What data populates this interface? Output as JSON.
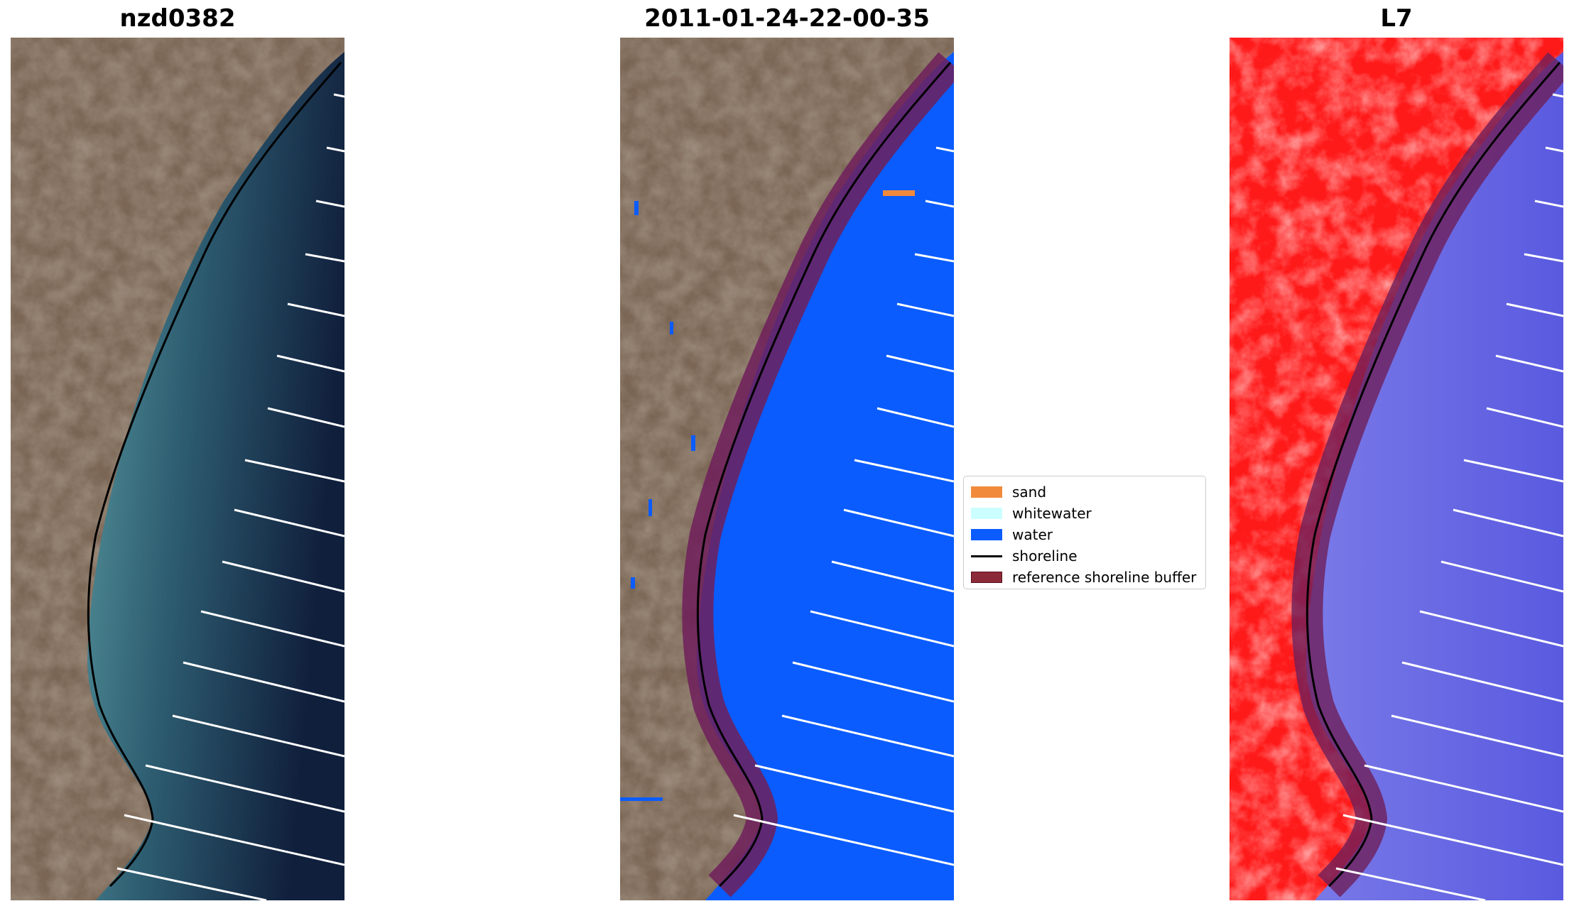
{
  "panels": [
    {
      "title": "nzd0382"
    },
    {
      "title": "2011-01-24-22-00-35"
    },
    {
      "title": "L7"
    }
  ],
  "legend": {
    "items": [
      {
        "label": "sand",
        "color": "#f28a3c"
      },
      {
        "label": "whitewater",
        "color": "#ccffff"
      },
      {
        "label": "water",
        "color": "#0a5cff"
      },
      {
        "label": "shoreline",
        "color": "#000000"
      },
      {
        "label": "reference shoreline buffer",
        "color": "#8b2a38"
      }
    ]
  },
  "colors": {
    "land": "#7a6552",
    "sea_near": "#4f8a90",
    "sea_far": "#122542",
    "classified_water": "#0a5cff",
    "buffer": "#6e1f5a",
    "false_color_land": "#ff1a1a",
    "false_color_water": "#6a6ae6",
    "transect": "#ffffff"
  }
}
